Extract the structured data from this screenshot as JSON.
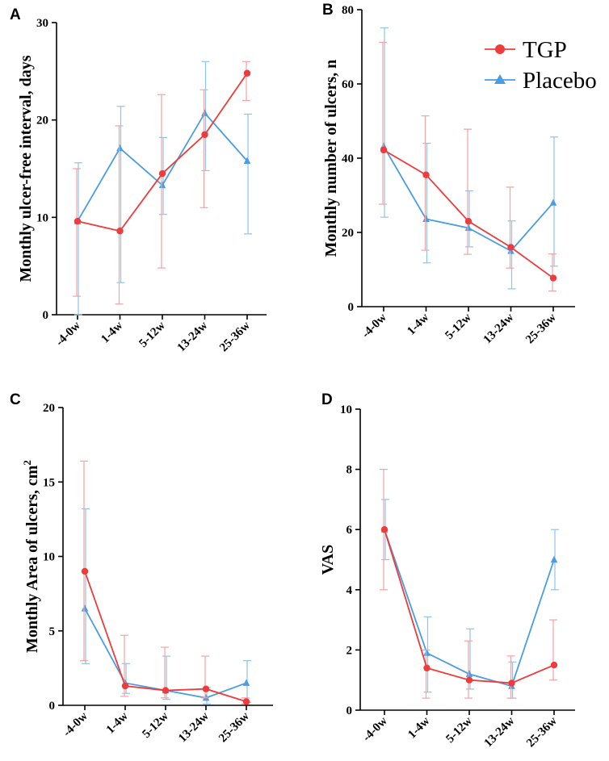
{
  "colors": {
    "tgp": "#ef3b3b",
    "tgp_err": "#f2a3a3",
    "placebo": "#4a9de3",
    "placebo_err": "#8ec3ee",
    "axis": "#000000"
  },
  "legend": {
    "entries": [
      {
        "label": "TGP",
        "series": "tgp"
      },
      {
        "label": "Placebo",
        "series": "placebo"
      }
    ]
  },
  "chart_data": [
    {
      "id": "A",
      "panel_label": "A",
      "type": "line",
      "categories": [
        "-4-0w",
        "1-4w",
        "5-12w",
        "13-24w",
        "25-36w"
      ],
      "ylabel": "Monthly ulcer-free interval,  days",
      "ylim": [
        0,
        30
      ],
      "yticks": [
        0,
        10,
        20,
        30
      ],
      "series": [
        {
          "name": "TGP",
          "key": "tgp",
          "values": [
            9.6,
            8.6,
            14.5,
            18.5,
            24.8
          ],
          "err_low": [
            1.9,
            1.1,
            4.8,
            11.0,
            22.0
          ],
          "err_high": [
            15.0,
            19.4,
            22.6,
            23.1,
            26.0
          ]
        },
        {
          "name": "Placebo",
          "key": "placebo",
          "values": [
            9.6,
            17.1,
            13.3,
            20.7,
            15.8
          ],
          "err_low": [
            0,
            3.3,
            10.3,
            14.8,
            8.3
          ],
          "err_high": [
            15.6,
            21.4,
            18.2,
            26.0,
            20.6
          ]
        }
      ]
    },
    {
      "id": "B",
      "panel_label": "B",
      "type": "line",
      "categories": [
        "-4-0w",
        "1-4w",
        "5-12w",
        "13-24w",
        "25-36w"
      ],
      "ylabel": "Monthly number of ulcers, n",
      "ylim": [
        0,
        80
      ],
      "yticks": [
        0,
        20,
        40,
        60,
        80
      ],
      "series": [
        {
          "name": "TGP",
          "key": "tgp",
          "values": [
            42.2,
            35.5,
            23.0,
            16.0,
            7.7
          ],
          "err_low": [
            27.6,
            15.2,
            14.1,
            10.4,
            4.2
          ],
          "err_high": [
            71.2,
            51.4,
            47.8,
            32.2,
            14.2
          ]
        },
        {
          "name": "Placebo",
          "key": "placebo",
          "values": [
            43.2,
            23.6,
            21.2,
            15.0,
            28.0
          ],
          "err_low": [
            24.1,
            11.8,
            16.1,
            4.8,
            10.9
          ],
          "err_high": [
            75.1,
            44.0,
            31.2,
            23.1,
            45.7
          ]
        }
      ]
    },
    {
      "id": "C",
      "panel_label": "C",
      "type": "line",
      "categories": [
        "-4-0w",
        "1-4w",
        "5-12w",
        "13-24w",
        "25-36w"
      ],
      "ylabel": "Monthly Area of ulcers, cm",
      "ylabel_sup": "2",
      "ylim": [
        0,
        20
      ],
      "yticks": [
        0,
        5,
        10,
        15,
        20
      ],
      "series": [
        {
          "name": "TGP",
          "key": "tgp",
          "values": [
            9.0,
            1.3,
            1.0,
            1.1,
            0.25
          ],
          "err_low": [
            3.0,
            0.6,
            0.5,
            0.5,
            0.1
          ],
          "err_high": [
            16.4,
            4.7,
            3.9,
            3.3,
            0.5
          ]
        },
        {
          "name": "Placebo",
          "key": "placebo",
          "values": [
            6.5,
            1.5,
            1.0,
            0.5,
            1.5
          ],
          "err_low": [
            2.8,
            0.8,
            0.4,
            0.1,
            0.2
          ],
          "err_high": [
            13.2,
            2.8,
            3.3,
            1.2,
            3.0
          ]
        }
      ]
    },
    {
      "id": "D",
      "panel_label": "D",
      "type": "line",
      "categories": [
        "-4-0w",
        "1-4w",
        "5-12w",
        "13-24w",
        "25-36w"
      ],
      "ylabel": "VAS",
      "ylim": [
        0,
        10
      ],
      "yticks": [
        0,
        2,
        4,
        6,
        8,
        10
      ],
      "series": [
        {
          "name": "TGP",
          "key": "tgp",
          "values": [
            6.0,
            1.4,
            1.0,
            0.9,
            1.5
          ],
          "err_low": [
            4.0,
            0.4,
            0.4,
            0.4,
            1.0
          ],
          "err_high": [
            8.0,
            2.0,
            2.3,
            1.8,
            3.0
          ]
        },
        {
          "name": "Placebo",
          "key": "placebo",
          "values": [
            6.0,
            1.9,
            1.2,
            0.8,
            5.0
          ],
          "err_low": [
            5.0,
            0.6,
            0.7,
            0.4,
            4.0
          ],
          "err_high": [
            7.0,
            3.1,
            2.7,
            1.6,
            6.0
          ]
        }
      ]
    }
  ]
}
